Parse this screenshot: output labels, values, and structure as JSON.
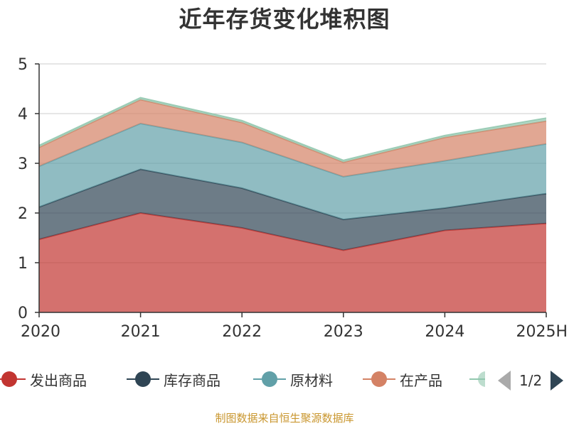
{
  "chart_data": {
    "type": "area",
    "stacked": true,
    "title": "近年存货变化堆积图",
    "ylabel": "",
    "xlabel": "",
    "ylim": [
      0,
      5
    ],
    "yticks": [
      0,
      1,
      2,
      3,
      4,
      5
    ],
    "grid": true,
    "categories": [
      "2020",
      "2021",
      "2022",
      "2023",
      "2024",
      "2025H"
    ],
    "series": [
      {
        "name": "发出商品",
        "color": "#c23531",
        "values": [
          1.47,
          2.0,
          1.7,
          1.25,
          1.65,
          1.79
        ]
      },
      {
        "name": "库存商品",
        "color": "#2f4554",
        "values": [
          0.65,
          0.88,
          0.8,
          0.62,
          0.45,
          0.6
        ]
      },
      {
        "name": "原材料",
        "color": "#61a0a8",
        "values": [
          0.82,
          0.92,
          0.92,
          0.86,
          0.95,
          1.0
        ]
      },
      {
        "name": "在产品",
        "color": "#d48265",
        "values": [
          0.38,
          0.48,
          0.4,
          0.29,
          0.47,
          0.46
        ]
      },
      {
        "color": "#91c7ae",
        "values": [
          0.04,
          0.04,
          0.04,
          0.04,
          0.04,
          0.06
        ]
      }
    ],
    "legend": {
      "position": "bottom",
      "page": "1/2"
    }
  },
  "source_note": "制图数据来自恒生聚源数据库"
}
